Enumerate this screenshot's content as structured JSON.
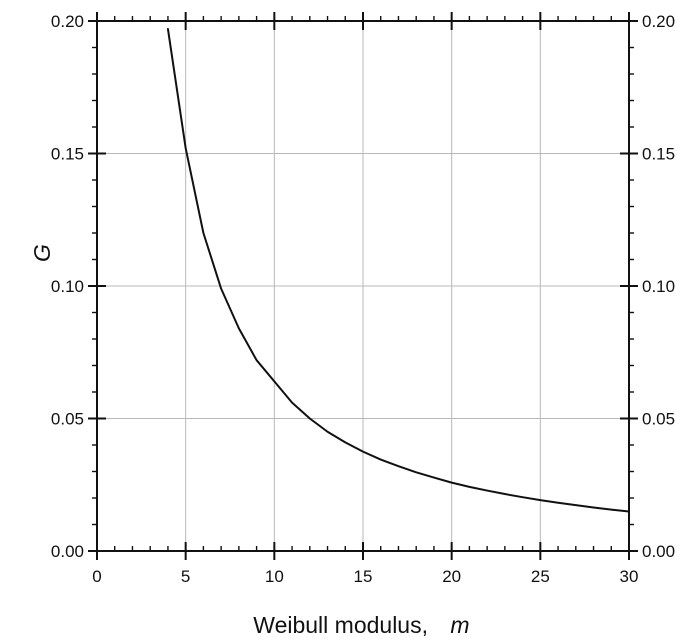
{
  "chart_data": {
    "type": "line",
    "title": "",
    "xlabel": {
      "text": "Weibull modulus,",
      "symbol": "m"
    },
    "ylabel": {
      "text": "",
      "symbol": "G"
    },
    "xlim": [
      0,
      30
    ],
    "ylim": [
      0,
      0.2
    ],
    "x_ticks": [
      0,
      5,
      10,
      15,
      20,
      25,
      30
    ],
    "x_tick_labels": [
      "0",
      "5",
      "10",
      "15",
      "20",
      "25",
      "30"
    ],
    "y_ticks": [
      0,
      0.05,
      0.1,
      0.15,
      0.2
    ],
    "y_tick_labels": [
      "0.00",
      "0.05",
      "0.10",
      "0.15",
      "0.20"
    ],
    "right_y_tick_labels": [
      "0.00",
      "0.05",
      "0.10",
      "0.15",
      "0.20"
    ],
    "minor_tick_step_x": 1,
    "minor_tick_step_y": 0.01,
    "grid": true,
    "legend": "none",
    "series": [
      {
        "x": [
          4,
          5,
          6,
          7,
          8,
          9,
          10,
          11,
          12,
          13,
          14,
          15,
          16,
          17,
          18,
          19,
          20,
          21,
          22,
          23,
          24,
          25,
          26,
          27,
          28,
          29,
          30
        ],
        "y": [
          0.197,
          0.152,
          0.12,
          0.099,
          0.084,
          0.072,
          0.064,
          0.056,
          0.05,
          0.045,
          0.041,
          0.0375,
          0.0345,
          0.032,
          0.0297,
          0.0277,
          0.0258,
          0.0242,
          0.0228,
          0.0215,
          0.0203,
          0.0192,
          0.0182,
          0.0173,
          0.0164,
          0.0156,
          0.0149
        ],
        "color": "#111111"
      }
    ]
  },
  "colors": {
    "grid": "#b8b8b8",
    "axis": "#111111",
    "curve": "#111111",
    "background": "#ffffff"
  }
}
